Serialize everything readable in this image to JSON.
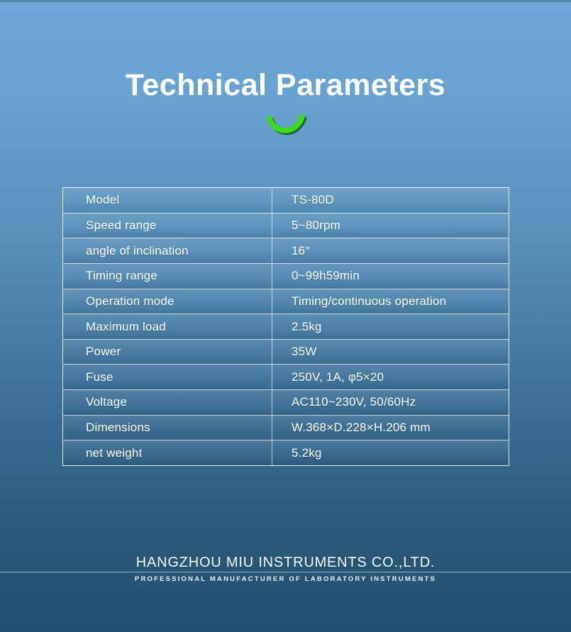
{
  "page": {
    "title": "Technical Parameters"
  },
  "table": {
    "rows": [
      {
        "label": "Model",
        "value": "TS-80D"
      },
      {
        "label": "Speed range",
        "value": "5~80rpm"
      },
      {
        "label": "angle of inclination",
        "value": "16°"
      },
      {
        "label": "Timing range",
        "value": "0~99h59min"
      },
      {
        "label": "Operation mode",
        "value": "Timing/continuous operation"
      },
      {
        "label": "Maximum load",
        "value": "2.5kg"
      },
      {
        "label": "Power",
        "value": "35W"
      },
      {
        "label": "Fuse",
        "value": "250V, 1A, φ5×20"
      },
      {
        "label": "Voltage",
        "value": "AC110~230V, 50/60Hz"
      },
      {
        "label": "Dimensions",
        "value": "W.368×D.228×H.206 mm"
      },
      {
        "label": "net weight",
        "value": "5.2kg"
      }
    ]
  },
  "footer": {
    "company": "HANGZHOU MIU INSTRUMENTS CO.,LTD.",
    "tagline": "PROFESSIONAL MANUFACTURER OF LABORATORY INSTRUMENTS"
  },
  "colors": {
    "background_top": "#6fa8d6",
    "background_bottom": "#224e6d",
    "accent_green": "#3bdd18",
    "accent_green_shadow": "#1d6b2e",
    "text": "#ffffff",
    "table_border": "rgba(255,255,255,0.75)"
  },
  "icons": {
    "divider": "smile-arc-icon"
  }
}
